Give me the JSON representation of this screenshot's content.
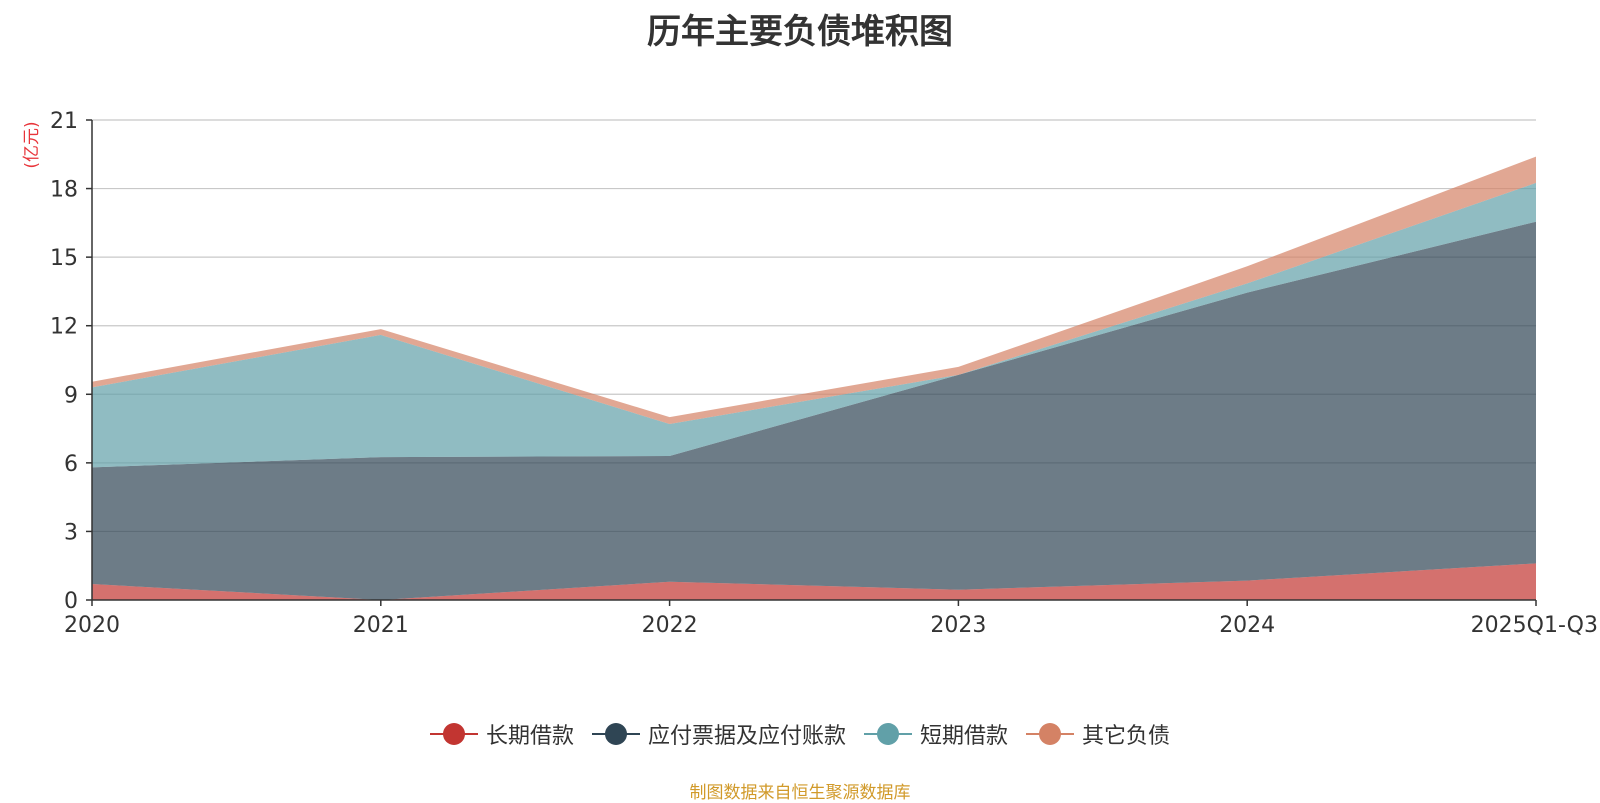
{
  "chart_data": {
    "type": "area",
    "stacked": true,
    "title": "历年主要负债堆积图",
    "ylabel": "(亿元)",
    "xlabel": "",
    "x": [
      "2020",
      "2021",
      "2022",
      "2023",
      "2024",
      "2025Q1-Q3"
    ],
    "ylim": [
      0,
      21
    ],
    "yticks": [
      0,
      3,
      6,
      9,
      12,
      15,
      18,
      21
    ],
    "grid": true,
    "legend_position": "bottom",
    "series": [
      {
        "name": "长期借款",
        "color": "#c23531",
        "values": [
          0.7,
          0.0,
          0.8,
          0.45,
          0.85,
          1.6
        ]
      },
      {
        "name": "应付票据及应付账款",
        "color": "#2f4554",
        "values": [
          5.1,
          6.25,
          5.5,
          9.4,
          12.6,
          14.95
        ]
      },
      {
        "name": "短期借款",
        "color": "#61a0a8",
        "values": [
          3.5,
          5.35,
          1.4,
          0.0,
          0.4,
          1.7
        ]
      },
      {
        "name": "其它负债",
        "color": "#d48265",
        "values": [
          0.25,
          0.25,
          0.3,
          0.35,
          0.75,
          1.15
        ]
      }
    ]
  },
  "source_note": "制图数据来自恒生聚源数据库"
}
